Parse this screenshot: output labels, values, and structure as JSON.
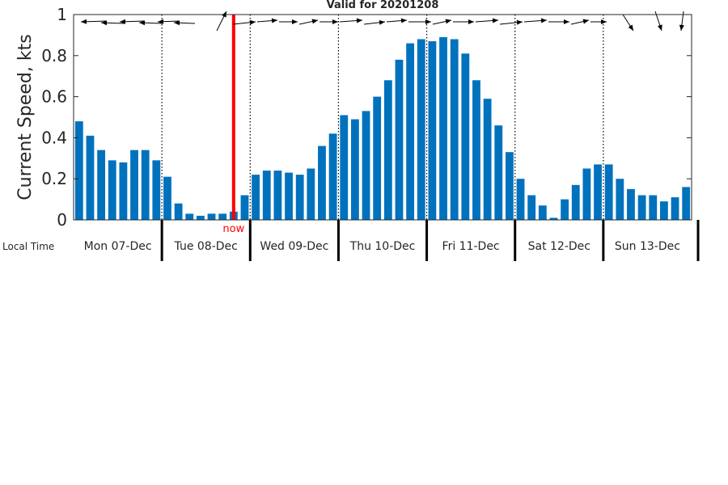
{
  "chart_data": {
    "type": "bar",
    "title": "Valid for 20201208",
    "ylabel": "Current Speed, kts",
    "xlabel": "Local Time",
    "ylim": [
      0,
      1
    ],
    "yticks": [
      "0",
      "0.2",
      "0.4",
      "0.6",
      "0.8",
      "1"
    ],
    "bar_color": "#0072BD",
    "now_color": "#FF0000",
    "now_label": "now",
    "now_index": 14.5,
    "day_labels": [
      "Mon 07-Dec",
      "Tue 08-Dec",
      "Wed 09-Dec",
      "Thu 10-Dec",
      "Fri 11-Dec",
      "Sat 12-Dec",
      "Sun 13-Dec"
    ],
    "values": [
      0.48,
      0.41,
      0.34,
      0.29,
      0.28,
      0.34,
      0.34,
      0.29,
      0.21,
      0.08,
      0.03,
      0.02,
      0.03,
      0.03,
      0.04,
      0.12,
      0.22,
      0.24,
      0.24,
      0.23,
      0.22,
      0.25,
      0.36,
      0.42,
      0.51,
      0.49,
      0.53,
      0.6,
      0.68,
      0.78,
      0.86,
      0.88,
      0.87,
      0.89,
      0.88,
      0.81,
      0.68,
      0.59,
      0.46,
      0.33,
      0.2,
      0.12,
      0.07,
      0.01,
      0.1,
      0.17,
      0.25,
      0.27,
      0.27,
      0.2,
      0.15,
      0.12,
      0.12,
      0.09,
      0.11,
      0.16
    ],
    "direction_arrows": "wind-barb direction arrows along top of plot"
  }
}
